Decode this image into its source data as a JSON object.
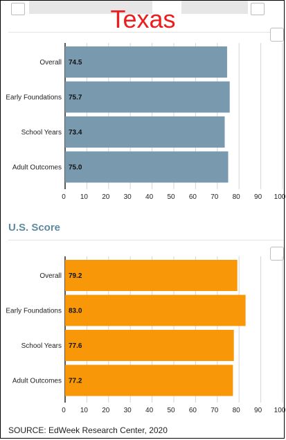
{
  "header": {
    "title": "Texas"
  },
  "us_section": {
    "label": "U.S. Score"
  },
  "footer": {
    "source": "SOURCE: EdWeek Research Center, 2020"
  },
  "colors": {
    "texas_bar": "#7899ae",
    "us_bar": "#f89808",
    "title": "#ee1c1c",
    "section_label": "#5e8aa0"
  },
  "chart_data": [
    {
      "type": "bar",
      "orientation": "horizontal",
      "categories": [
        "Overall",
        "Early Foundations",
        "School Years",
        "Adult Outcomes"
      ],
      "values": [
        74.5,
        75.7,
        73.4,
        75.0
      ],
      "value_labels": [
        "74.5",
        "75.7",
        "73.4",
        "75.0"
      ],
      "xlim": [
        0,
        100
      ],
      "xticks": [
        0,
        10,
        20,
        30,
        40,
        50,
        60,
        70,
        80,
        90,
        100
      ],
      "grid": true
    },
    {
      "type": "bar",
      "orientation": "horizontal",
      "categories": [
        "Overall",
        "Early Foundations",
        "School Years",
        "Adult Outcomes"
      ],
      "values": [
        79.2,
        83.0,
        77.6,
        77.2
      ],
      "value_labels": [
        "79.2",
        "83.0",
        "77.6",
        "77.2"
      ],
      "xlim": [
        0,
        100
      ],
      "xticks": [
        0,
        10,
        20,
        30,
        40,
        50,
        60,
        70,
        80,
        90,
        100
      ],
      "grid": true
    }
  ]
}
